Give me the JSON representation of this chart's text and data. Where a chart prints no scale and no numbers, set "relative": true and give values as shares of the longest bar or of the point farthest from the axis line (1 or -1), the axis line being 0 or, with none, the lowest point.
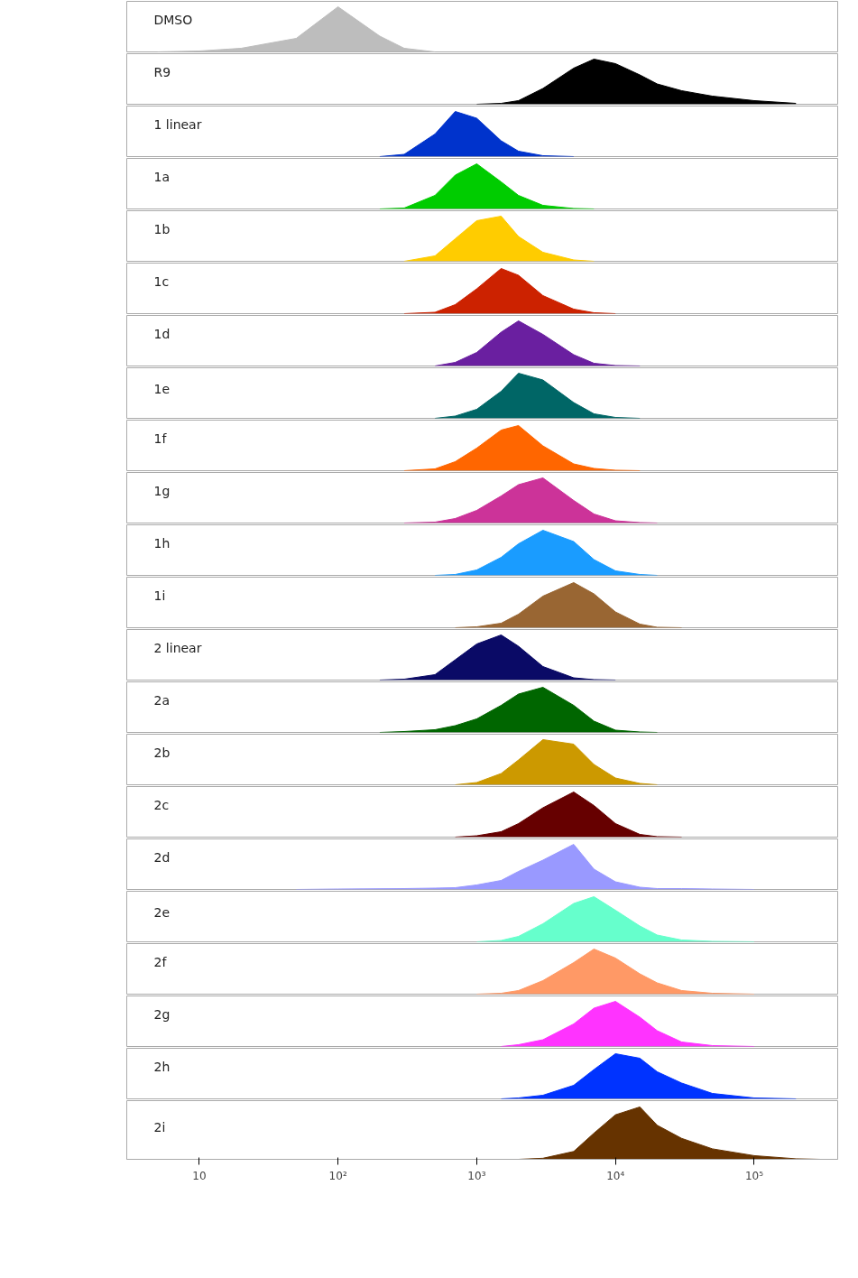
{
  "chart_data": [
    {
      "type": "area",
      "relative": true,
      "log": "x",
      "xlim": [
        3,
        400000
      ],
      "tick_labels": false,
      "series": [
        {
          "name": "DMSO",
          "color": "#bdbdbd",
          "x": [
            5,
            10,
            20,
            50,
            100,
            200,
            300,
            500
          ],
          "values": [
            0,
            0.02,
            0.08,
            0.3,
            1,
            0.35,
            0.08,
            0
          ]
        }
      ]
    },
    {
      "type": "area",
      "relative": true,
      "log": "x",
      "xlim": [
        3,
        400000
      ],
      "tick_labels": false,
      "series": [
        {
          "name": "R9",
          "color": "#000000",
          "x": [
            1000,
            1500,
            2000,
            3000,
            5000,
            7000,
            10000,
            15000,
            20000,
            30000,
            50000,
            100000,
            200000
          ],
          "values": [
            0,
            0.02,
            0.08,
            0.35,
            0.8,
            1,
            0.9,
            0.65,
            0.45,
            0.3,
            0.18,
            0.08,
            0.02
          ]
        }
      ]
    },
    {
      "type": "area",
      "relative": true,
      "log": "x",
      "xlim": [
        3,
        400000
      ],
      "tick_labels": false,
      "series": [
        {
          "name": "1 linear",
          "color": "#0033cc",
          "x": [
            200,
            300,
            500,
            700,
            1000,
            1500,
            2000,
            3000,
            5000
          ],
          "values": [
            0,
            0.05,
            0.5,
            1,
            0.85,
            0.35,
            0.12,
            0.02,
            0
          ]
        }
      ]
    },
    {
      "type": "area",
      "relative": true,
      "log": "x",
      "xlim": [
        3,
        400000
      ],
      "tick_labels": false,
      "series": [
        {
          "name": "1a",
          "color": "#00cc00",
          "x": [
            200,
            300,
            500,
            700,
            1000,
            1500,
            2000,
            3000,
            5000,
            7000
          ],
          "values": [
            0,
            0.02,
            0.3,
            0.75,
            1,
            0.6,
            0.3,
            0.08,
            0.01,
            0
          ]
        }
      ]
    },
    {
      "type": "area",
      "relative": true,
      "log": "x",
      "xlim": [
        3,
        400000
      ],
      "tick_labels": false,
      "series": [
        {
          "name": "1b",
          "color": "#ffcc00",
          "x": [
            300,
            500,
            700,
            1000,
            1500,
            2000,
            3000,
            5000,
            7000
          ],
          "values": [
            0,
            0.12,
            0.5,
            0.9,
            1,
            0.55,
            0.2,
            0.03,
            0
          ]
        }
      ]
    },
    {
      "type": "area",
      "relative": true,
      "log": "x",
      "xlim": [
        3,
        400000
      ],
      "tick_labels": false,
      "series": [
        {
          "name": "1c",
          "color": "#cc2200",
          "x": [
            300,
            500,
            700,
            1000,
            1500,
            2000,
            3000,
            5000,
            7000,
            10000
          ],
          "values": [
            0,
            0.03,
            0.2,
            0.55,
            1,
            0.85,
            0.4,
            0.1,
            0.02,
            0
          ]
        }
      ]
    },
    {
      "type": "area",
      "relative": true,
      "log": "x",
      "xlim": [
        3,
        400000
      ],
      "tick_labels": false,
      "series": [
        {
          "name": "1d",
          "color": "#6a1fa0",
          "x": [
            500,
            700,
            1000,
            1500,
            2000,
            3000,
            5000,
            7000,
            10000,
            15000
          ],
          "values": [
            0,
            0.08,
            0.3,
            0.75,
            1,
            0.7,
            0.25,
            0.06,
            0.01,
            0
          ]
        }
      ]
    },
    {
      "type": "area",
      "relative": true,
      "log": "x",
      "xlim": [
        3,
        400000
      ],
      "tick_labels": false,
      "series": [
        {
          "name": "1e",
          "color": "#006666",
          "x": [
            500,
            700,
            1000,
            1500,
            2000,
            3000,
            5000,
            7000,
            10000,
            15000
          ],
          "values": [
            0,
            0.05,
            0.2,
            0.6,
            1,
            0.85,
            0.35,
            0.1,
            0.02,
            0
          ]
        }
      ]
    },
    {
      "type": "area",
      "relative": true,
      "log": "x",
      "xlim": [
        3,
        400000
      ],
      "tick_labels": false,
      "series": [
        {
          "name": "1f",
          "color": "#ff6600",
          "x": [
            300,
            500,
            700,
            1000,
            1500,
            2000,
            3000,
            5000,
            7000,
            10000,
            15000
          ],
          "values": [
            0,
            0.04,
            0.2,
            0.5,
            0.9,
            1,
            0.55,
            0.15,
            0.05,
            0.01,
            0
          ]
        }
      ]
    },
    {
      "type": "area",
      "relative": true,
      "log": "x",
      "xlim": [
        3,
        400000
      ],
      "tick_labels": false,
      "series": [
        {
          "name": "1g",
          "color": "#cc3399",
          "x": [
            300,
            500,
            700,
            1000,
            1500,
            2000,
            3000,
            5000,
            7000,
            10000,
            15000,
            20000
          ],
          "values": [
            0,
            0.02,
            0.1,
            0.28,
            0.6,
            0.85,
            1,
            0.5,
            0.2,
            0.05,
            0.01,
            0
          ]
        }
      ]
    },
    {
      "type": "area",
      "relative": true,
      "log": "x",
      "xlim": [
        3,
        400000
      ],
      "tick_labels": false,
      "series": [
        {
          "name": "1h",
          "color": "#1a9cff",
          "x": [
            500,
            700,
            1000,
            1500,
            2000,
            3000,
            5000,
            7000,
            10000,
            15000,
            20000
          ],
          "values": [
            0,
            0.02,
            0.12,
            0.4,
            0.7,
            1,
            0.75,
            0.35,
            0.1,
            0.02,
            0
          ]
        }
      ]
    },
    {
      "type": "area",
      "relative": true,
      "log": "x",
      "xlim": [
        3,
        400000
      ],
      "tick_labels": false,
      "series": [
        {
          "name": "1i",
          "color": "#996633",
          "x": [
            700,
            1000,
            1500,
            2000,
            3000,
            5000,
            7000,
            10000,
            15000,
            20000,
            30000
          ],
          "values": [
            0,
            0.02,
            0.1,
            0.3,
            0.7,
            1,
            0.75,
            0.35,
            0.08,
            0.01,
            0
          ]
        }
      ]
    },
    {
      "type": "area",
      "relative": true,
      "log": "x",
      "xlim": [
        3,
        400000
      ],
      "tick_labels": false,
      "series": [
        {
          "name": "2 linear",
          "color": "#0a0a66",
          "x": [
            200,
            300,
            500,
            700,
            1000,
            1500,
            2000,
            3000,
            5000,
            7000,
            10000
          ],
          "values": [
            0,
            0.02,
            0.12,
            0.45,
            0.8,
            1,
            0.75,
            0.3,
            0.05,
            0.01,
            0
          ]
        }
      ]
    },
    {
      "type": "area",
      "relative": true,
      "log": "x",
      "xlim": [
        3,
        400000
      ],
      "tick_labels": false,
      "series": [
        {
          "name": "2a",
          "color": "#006600",
          "x": [
            200,
            300,
            500,
            700,
            1000,
            1500,
            2000,
            3000,
            5000,
            7000,
            10000,
            15000,
            20000
          ],
          "values": [
            0,
            0.02,
            0.06,
            0.15,
            0.3,
            0.6,
            0.85,
            1,
            0.6,
            0.25,
            0.05,
            0.01,
            0
          ]
        }
      ]
    },
    {
      "type": "area",
      "relative": true,
      "log": "x",
      "xlim": [
        3,
        400000
      ],
      "tick_labels": false,
      "series": [
        {
          "name": "2b",
          "color": "#cc9900",
          "x": [
            700,
            1000,
            1500,
            2000,
            3000,
            5000,
            7000,
            10000,
            15000,
            20000
          ],
          "values": [
            0,
            0.05,
            0.25,
            0.55,
            1,
            0.9,
            0.45,
            0.15,
            0.03,
            0
          ]
        }
      ]
    },
    {
      "type": "area",
      "relative": true,
      "log": "x",
      "xlim": [
        3,
        400000
      ],
      "tick_labels": false,
      "series": [
        {
          "name": "2c",
          "color": "#660000",
          "x": [
            700,
            1000,
            1500,
            2000,
            3000,
            5000,
            7000,
            10000,
            15000,
            20000,
            30000
          ],
          "values": [
            0,
            0.03,
            0.12,
            0.3,
            0.65,
            1,
            0.7,
            0.3,
            0.06,
            0.01,
            0
          ]
        }
      ]
    },
    {
      "type": "area",
      "relative": true,
      "log": "x",
      "xlim": [
        3,
        400000
      ],
      "tick_labels": false,
      "series": [
        {
          "name": "2d",
          "color": "#9999ff",
          "x": [
            50,
            100,
            300,
            500,
            700,
            1000,
            1500,
            2000,
            3000,
            5000,
            7000,
            10000,
            15000,
            20000,
            30000,
            50000,
            100000
          ],
          "values": [
            0,
            0.01,
            0.02,
            0.03,
            0.04,
            0.1,
            0.2,
            0.4,
            0.65,
            1,
            0.45,
            0.17,
            0.05,
            0.02,
            0.02,
            0.01,
            0
          ]
        }
      ]
    },
    {
      "type": "area",
      "relative": true,
      "log": "x",
      "xlim": [
        3,
        400000
      ],
      "tick_labels": false,
      "series": [
        {
          "name": "2e",
          "color": "#66ffcc",
          "x": [
            1000,
            1500,
            2000,
            3000,
            5000,
            7000,
            10000,
            15000,
            20000,
            30000,
            50000,
            100000
          ],
          "values": [
            0,
            0.03,
            0.12,
            0.4,
            0.85,
            1,
            0.7,
            0.35,
            0.15,
            0.04,
            0.01,
            0
          ]
        }
      ]
    },
    {
      "type": "area",
      "relative": true,
      "log": "x",
      "xlim": [
        3,
        400000
      ],
      "tick_labels": false,
      "series": [
        {
          "name": "2f",
          "color": "#ff9966",
          "x": [
            1000,
            1500,
            2000,
            3000,
            5000,
            7000,
            10000,
            15000,
            20000,
            30000,
            50000,
            100000
          ],
          "values": [
            0,
            0.02,
            0.08,
            0.3,
            0.7,
            1,
            0.8,
            0.45,
            0.25,
            0.08,
            0.02,
            0
          ]
        }
      ]
    },
    {
      "type": "area",
      "relative": true,
      "log": "x",
      "xlim": [
        3,
        400000
      ],
      "tick_labels": false,
      "series": [
        {
          "name": "2g",
          "color": "#ff33ff",
          "x": [
            1500,
            2000,
            3000,
            5000,
            7000,
            10000,
            15000,
            20000,
            30000,
            50000,
            100000
          ],
          "values": [
            0,
            0.04,
            0.15,
            0.5,
            0.85,
            1,
            0.65,
            0.35,
            0.1,
            0.02,
            0
          ]
        }
      ]
    },
    {
      "type": "area",
      "relative": true,
      "log": "x",
      "xlim": [
        3,
        400000
      ],
      "tick_labels": false,
      "series": [
        {
          "name": "2h",
          "color": "#0033ff",
          "x": [
            1500,
            2000,
            3000,
            5000,
            7000,
            10000,
            15000,
            20000,
            30000,
            50000,
            100000,
            200000
          ],
          "values": [
            0,
            0.02,
            0.08,
            0.3,
            0.65,
            1,
            0.9,
            0.6,
            0.35,
            0.12,
            0.02,
            0
          ]
        }
      ]
    },
    {
      "type": "area",
      "relative": true,
      "log": "x",
      "xlim": [
        3,
        400000
      ],
      "tick_labels": "x",
      "xticks": [
        10,
        {
          "value": 100,
          "label": "10²"
        },
        {
          "value": 1000,
          "label": "10³"
        },
        {
          "value": 10000,
          "label": "10⁴"
        },
        {
          "value": 100000,
          "label": "10⁵"
        }
      ],
      "series": [
        {
          "name": "2i",
          "color": "#663300",
          "x": [
            2000,
            3000,
            5000,
            7000,
            10000,
            15000,
            20000,
            30000,
            50000,
            100000,
            200000,
            300000
          ],
          "values": [
            0,
            0.02,
            0.15,
            0.5,
            0.85,
            1,
            0.65,
            0.4,
            0.2,
            0.07,
            0.01,
            0
          ]
        }
      ]
    }
  ]
}
